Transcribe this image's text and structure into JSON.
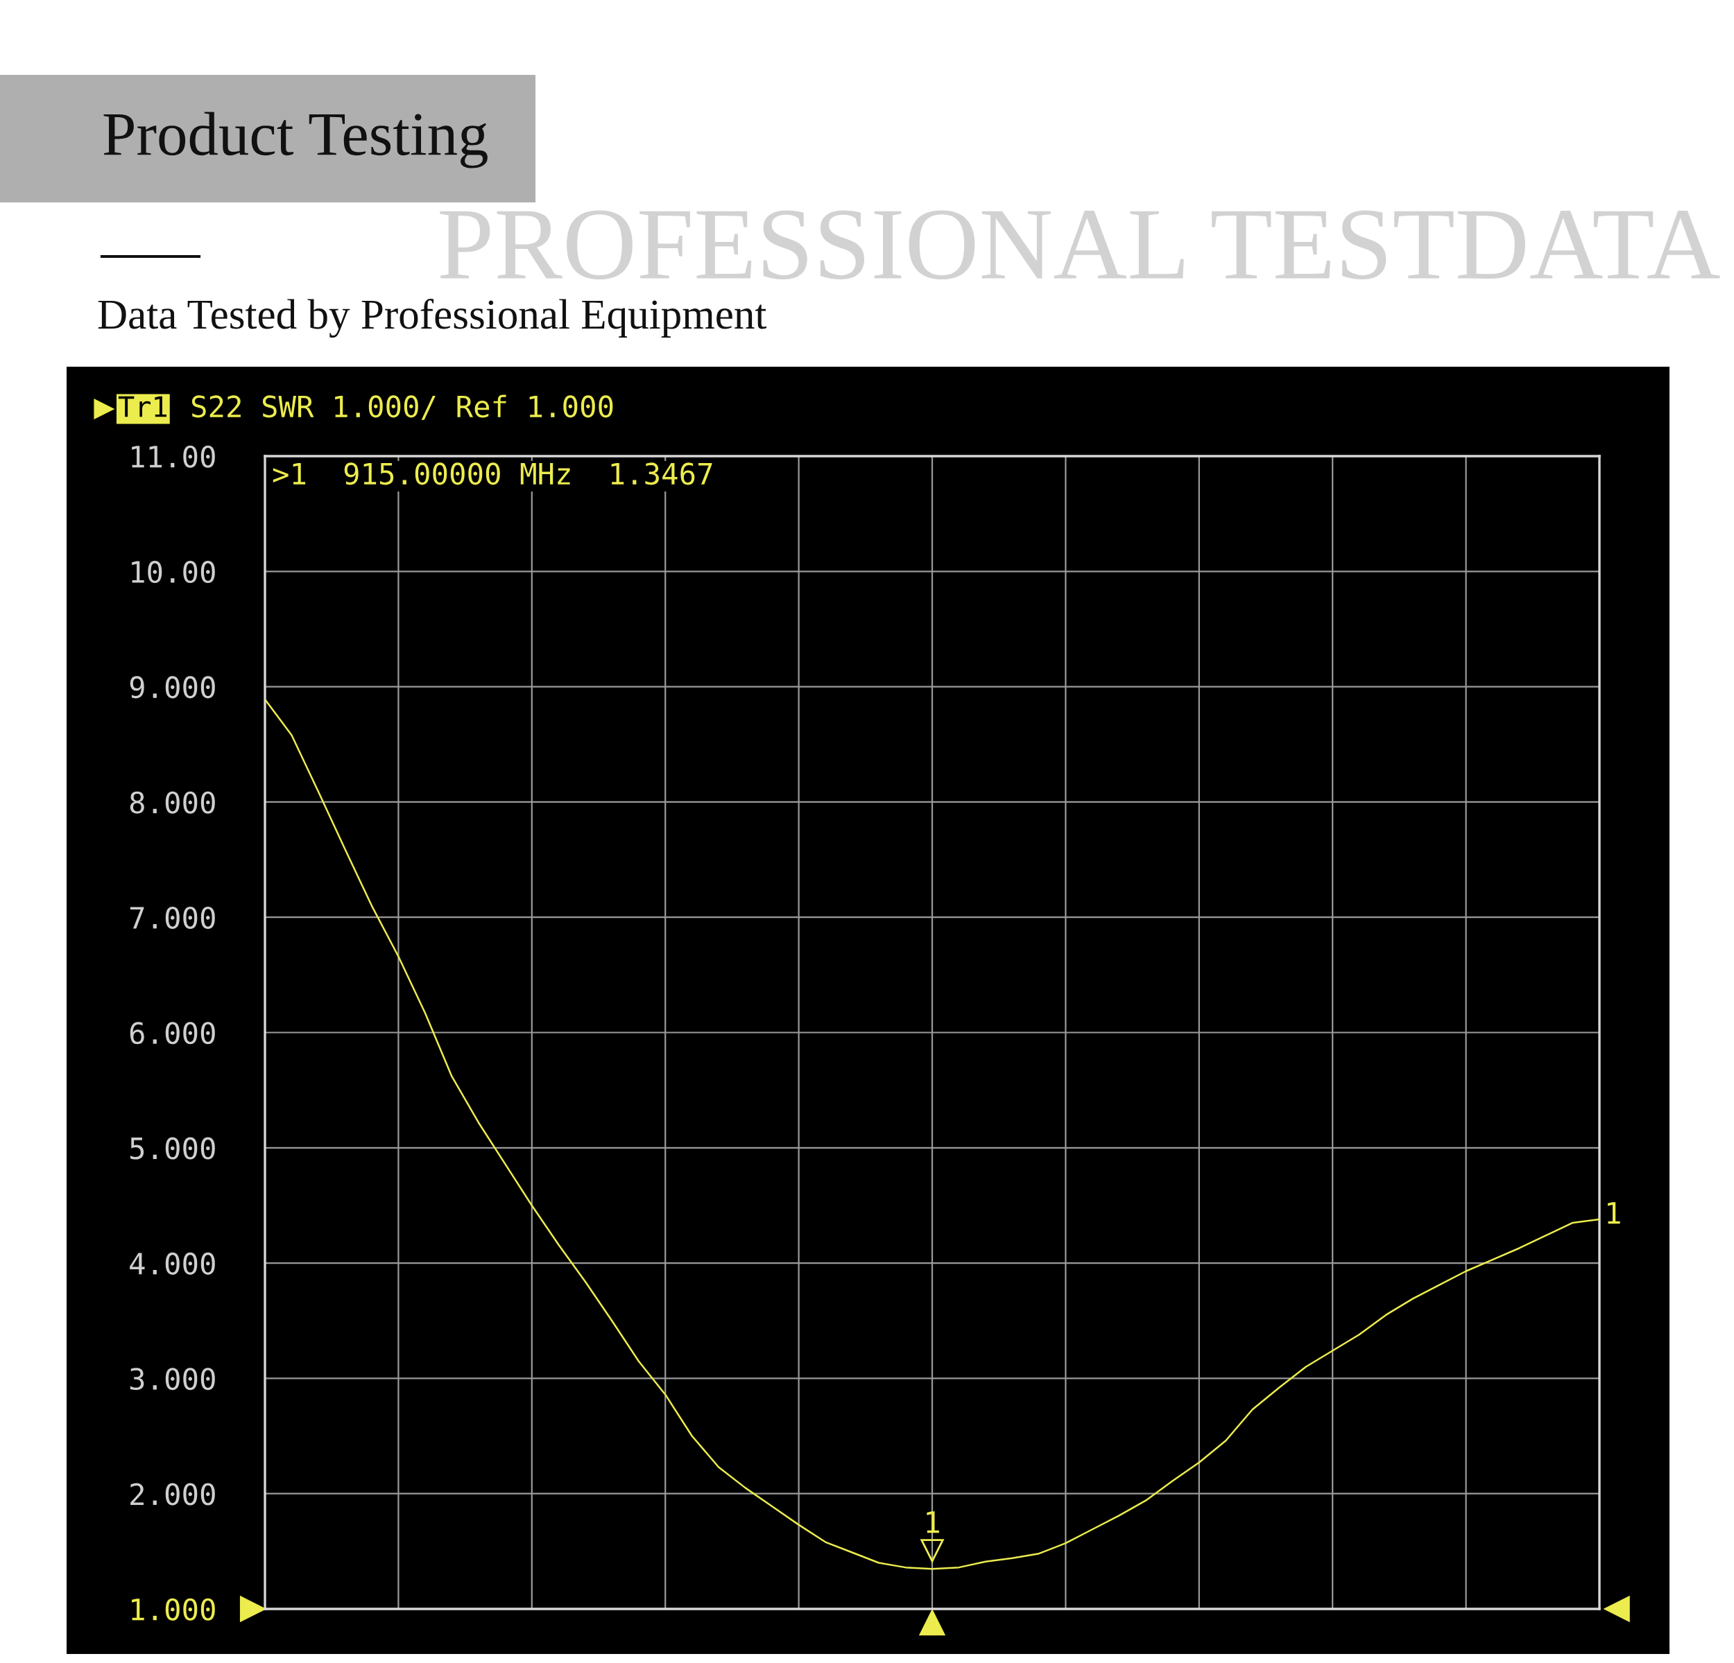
{
  "chart_data": {
    "type": "line",
    "title": "Product Testing",
    "subtitle": "Data Tested by Professional Equipment",
    "categories": [
      null,
      null,
      null,
      null,
      null,
      null,
      null,
      null,
      null,
      null,
      null,
      null,
      null,
      null,
      null,
      null,
      null,
      null,
      null,
      null,
      null,
      null,
      null,
      null,
      null,
      null,
      null,
      null,
      null,
      null,
      null,
      null,
      null,
      null,
      null,
      null,
      null,
      null,
      null,
      null,
      null,
      null,
      null,
      null,
      null,
      null,
      null,
      null,
      null,
      null,
      null
    ],
    "series": [
      {
        "color": "#ecec4e",
        "values": [
          8.89,
          8.58,
          8.09,
          7.59,
          7.1,
          6.66,
          6.17,
          5.62,
          5.22,
          4.86,
          4.5,
          4.16,
          3.84,
          3.5,
          3.15,
          2.86,
          2.5,
          2.23,
          2.05,
          1.89,
          1.73,
          1.58,
          1.49,
          1.4,
          1.36,
          1.3467,
          1.36,
          1.41,
          1.44,
          1.48,
          1.57,
          1.69,
          1.81,
          1.94,
          2.11,
          2.27,
          2.46,
          2.73,
          2.92,
          3.1,
          3.24,
          3.38,
          3.55,
          3.69,
          3.81,
          3.93,
          4.03,
          4.13,
          4.24,
          4.35,
          4.38
        ]
      }
    ],
    "ylim": [
      1,
      11
    ],
    "yticks": [
      {
        "value": 1,
        "label": "1.000"
      },
      {
        "value": 2,
        "label": "2.000"
      },
      {
        "value": 3,
        "label": "3.000"
      },
      {
        "value": 4,
        "label": "4.000"
      },
      {
        "value": 5,
        "label": "5.000"
      },
      {
        "value": 6,
        "label": "6.000"
      },
      {
        "value": 7,
        "label": "7.000"
      },
      {
        "value": 8,
        "label": "8.000"
      },
      {
        "value": 9,
        "label": "9.000"
      },
      {
        "value": 10,
        "label": "10.00"
      },
      {
        "value": 11,
        "label": "11.00"
      }
    ],
    "grid": true,
    "tick_labels": "y",
    "line_style": "solid",
    "marker": "none",
    "annotations": [
      "PROFESSIONAL TESTDATA",
      "Tr1",
      "S22 SWR 1.000/ Ref 1.000",
      ">1  915.00000 MHz  1.3467",
      {
        "text": "1",
        "y": 1.3467
      },
      "1"
    ]
  }
}
